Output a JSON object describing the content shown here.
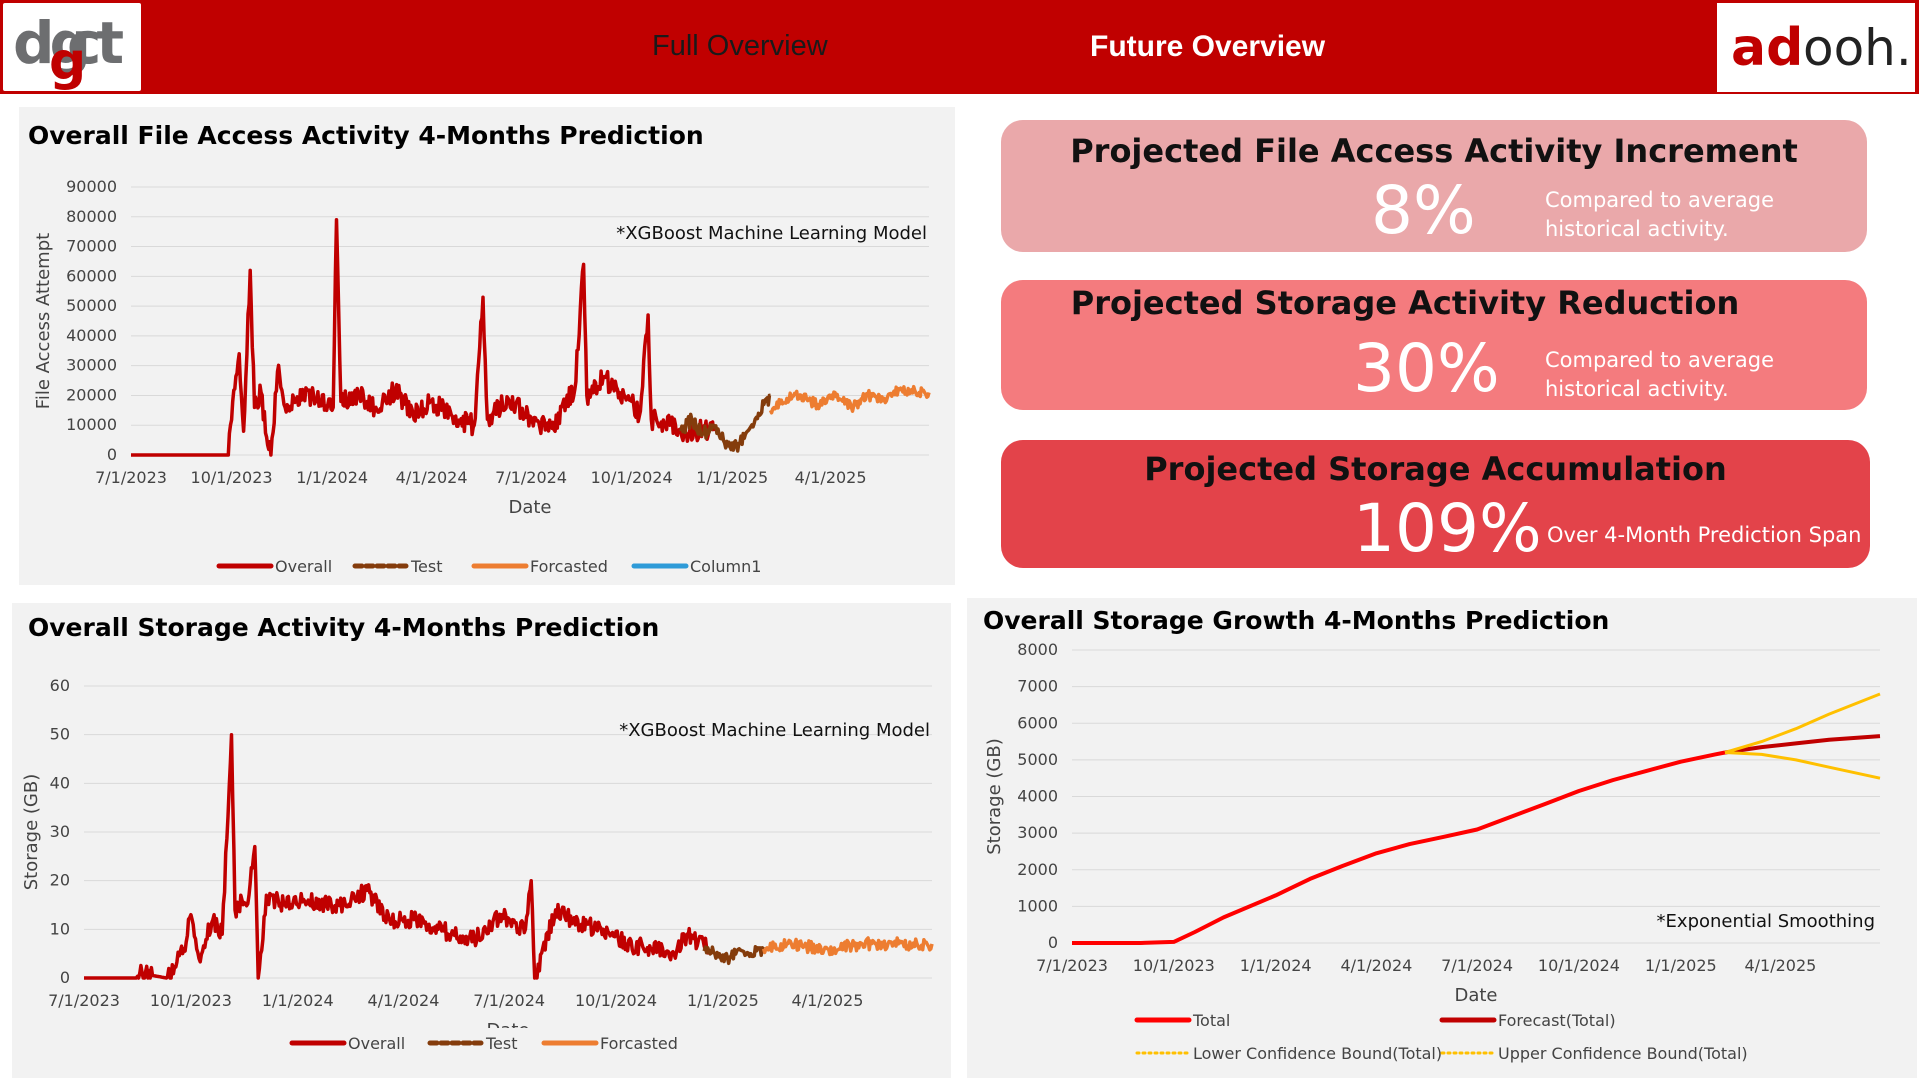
{
  "header": {
    "logo_left_text": "dgct",
    "logo_right_text": "adooh.",
    "nav_full": "Full Overview",
    "nav_future": "Future Overview"
  },
  "colors": {
    "header": "#c00000",
    "overall": "#c00000",
    "test": "#843c0c",
    "forecast": "#ed7d31",
    "column1": "#2e9bd8",
    "total": "#ff0000",
    "forecast_total": "#c00000",
    "confidence": "#ffc000",
    "card1": "#eaa8aa",
    "card2": "#f47b7e",
    "card3": "#e3434a"
  },
  "cards": [
    {
      "title": "Projected File Access Activity Increment",
      "value": "8%",
      "note_line1": "Compared to average",
      "note_line2": "historical activity."
    },
    {
      "title": "Projected Storage Activity Reduction",
      "value": "30%",
      "note_line1": "Compared to average",
      "note_line2": "historical activity."
    },
    {
      "title": "Projected Storage Accumulation",
      "value": "109%",
      "note_line1": "Over 4-Month Prediction Span",
      "note_line2": ""
    }
  ],
  "panels": {
    "file_access_title": "Overall File Access Activity 4-Months Prediction",
    "storage_activity_title": "Overall Storage Activity 4-Months Prediction",
    "storage_growth_title": "Overall Storage Growth 4-Months Prediction"
  },
  "chart_data": [
    {
      "type": "line",
      "title": "Overall File Access Activity 4-Months Prediction",
      "annotation": "*XGBoost Machine Learning Model",
      "xlabel": "Date",
      "ylabel": "File Access Attempt",
      "x_ticks": [
        "7/1/2023",
        "10/1/2023",
        "1/1/2024",
        "4/1/2024",
        "7/1/2024",
        "10/1/2024",
        "1/1/2025",
        "4/1/2025"
      ],
      "y_ticks": [
        0,
        10000,
        20000,
        30000,
        40000,
        50000,
        60000,
        70000,
        80000,
        90000
      ],
      "x_range": [
        "2023-07-01",
        "2025-06-30"
      ],
      "ylim": [
        0,
        90000
      ],
      "grid": true,
      "legend_position": "bottom",
      "series": [
        {
          "name": "Overall",
          "points": [
            [
              "2023-07-01",
              0
            ],
            [
              "2023-09-01",
              0
            ],
            [
              "2023-09-28",
              0
            ],
            [
              "2023-10-02",
              18000
            ],
            [
              "2023-10-08",
              34000
            ],
            [
              "2023-10-12",
              8000
            ],
            [
              "2023-10-18",
              62000
            ],
            [
              "2023-10-22",
              16000
            ],
            [
              "2023-10-28",
              21000
            ],
            [
              "2023-11-02",
              6000
            ],
            [
              "2023-11-06",
              0
            ],
            [
              "2023-11-12",
              28000
            ],
            [
              "2023-11-22",
              15000
            ],
            [
              "2023-12-05",
              22000
            ],
            [
              "2023-12-18",
              18000
            ],
            [
              "2024-01-02",
              16000
            ],
            [
              "2024-01-05",
              79000
            ],
            [
              "2024-01-09",
              18000
            ],
            [
              "2024-01-25",
              21000
            ],
            [
              "2024-02-10",
              16000
            ],
            [
              "2024-02-28",
              22000
            ],
            [
              "2024-03-15",
              14000
            ],
            [
              "2024-04-01",
              18000
            ],
            [
              "2024-04-20",
              13000
            ],
            [
              "2024-05-10",
              10000
            ],
            [
              "2024-05-18",
              53000
            ],
            [
              "2024-05-22",
              12000
            ],
            [
              "2024-06-10",
              19000
            ],
            [
              "2024-06-25",
              14000
            ],
            [
              "2024-07-08",
              11000
            ],
            [
              "2024-07-20",
              9000
            ],
            [
              "2024-08-02",
              18000
            ],
            [
              "2024-08-10",
              22000
            ],
            [
              "2024-08-18",
              64000
            ],
            [
              "2024-08-21",
              20000
            ],
            [
              "2024-09-05",
              26000
            ],
            [
              "2024-09-20",
              21000
            ],
            [
              "2024-10-01",
              18000
            ],
            [
              "2024-10-08",
              13000
            ],
            [
              "2024-10-16",
              47000
            ],
            [
              "2024-10-19",
              12000
            ],
            [
              "2024-11-05",
              10000
            ],
            [
              "2024-11-20",
              7000
            ],
            [
              "2024-12-05",
              9000
            ],
            [
              "2024-12-15",
              8000
            ]
          ]
        },
        {
          "name": "Test",
          "points": [
            [
              "2024-11-15",
              8000
            ],
            [
              "2024-11-25",
              12000
            ],
            [
              "2024-12-05",
              7000
            ],
            [
              "2024-12-15",
              10000
            ],
            [
              "2024-12-25",
              4000
            ],
            [
              "2025-01-05",
              3000
            ],
            [
              "2025-01-15",
              8000
            ],
            [
              "2025-01-25",
              14000
            ],
            [
              "2025-02-05",
              20000
            ]
          ]
        },
        {
          "name": "Forcasted",
          "points": [
            [
              "2025-02-05",
              15000
            ],
            [
              "2025-02-20",
              19000
            ],
            [
              "2025-03-05",
              20000
            ],
            [
              "2025-03-20",
              17000
            ],
            [
              "2025-04-05",
              21000
            ],
            [
              "2025-04-20",
              16000
            ],
            [
              "2025-05-05",
              20000
            ],
            [
              "2025-05-20",
              19000
            ],
            [
              "2025-06-05",
              22000
            ],
            [
              "2025-06-30",
              21000
            ]
          ]
        },
        {
          "name": "Column1",
          "points": []
        }
      ]
    },
    {
      "type": "line",
      "title": "Overall Storage Activity 4-Months Prediction",
      "annotation": "*XGBoost Machine Learning Model",
      "xlabel": "Date",
      "ylabel": "Storage (GB)",
      "x_ticks": [
        "7/1/2023",
        "10/1/2023",
        "1/1/2024",
        "4/1/2024",
        "7/1/2024",
        "10/1/2024",
        "1/1/2025",
        "4/1/2025"
      ],
      "y_ticks": [
        0,
        10,
        20,
        30,
        40,
        50,
        60
      ],
      "x_range": [
        "2023-07-01",
        "2025-06-30"
      ],
      "ylim": [
        0,
        60
      ],
      "grid": true,
      "legend_position": "bottom",
      "series": [
        {
          "name": "Overall",
          "points": [
            [
              "2023-07-01",
              0
            ],
            [
              "2023-08-15",
              0
            ],
            [
              "2023-08-18",
              1
            ],
            [
              "2023-09-10",
              0
            ],
            [
              "2023-09-25",
              6
            ],
            [
              "2023-10-01",
              13
            ],
            [
              "2023-10-08",
              4
            ],
            [
              "2023-10-20",
              12
            ],
            [
              "2023-10-28",
              9
            ],
            [
              "2023-11-05",
              50
            ],
            [
              "2023-11-08",
              14
            ],
            [
              "2023-11-20",
              17
            ],
            [
              "2023-11-25",
              27
            ],
            [
              "2023-11-28",
              0
            ],
            [
              "2023-12-05",
              17
            ],
            [
              "2023-12-20",
              15
            ],
            [
              "2024-01-10",
              16
            ],
            [
              "2024-02-05",
              15
            ],
            [
              "2024-03-01",
              18
            ],
            [
              "2024-03-20",
              12
            ],
            [
              "2024-04-10",
              12
            ],
            [
              "2024-05-01",
              10
            ],
            [
              "2024-06-01",
              8
            ],
            [
              "2024-06-25",
              13
            ],
            [
              "2024-07-15",
              10
            ],
            [
              "2024-07-20",
              20
            ],
            [
              "2024-07-23",
              0
            ],
            [
              "2024-08-10",
              14
            ],
            [
              "2024-09-01",
              11
            ],
            [
              "2024-09-20",
              10
            ],
            [
              "2024-10-10",
              7
            ],
            [
              "2024-11-01",
              6
            ],
            [
              "2024-11-20",
              5
            ],
            [
              "2024-12-01",
              9
            ],
            [
              "2024-12-20",
              6
            ]
          ]
        },
        {
          "name": "Test",
          "points": [
            [
              "2024-12-15",
              6
            ],
            [
              "2024-12-25",
              5
            ],
            [
              "2025-01-05",
              4
            ],
            [
              "2025-01-15",
              6
            ],
            [
              "2025-01-25",
              5
            ],
            [
              "2025-02-05",
              6
            ]
          ]
        },
        {
          "name": "Forcasted",
          "points": [
            [
              "2025-02-05",
              6
            ],
            [
              "2025-03-01",
              7
            ],
            [
              "2025-04-01",
              6
            ],
            [
              "2025-05-01",
              7
            ],
            [
              "2025-06-01",
              7
            ],
            [
              "2025-06-30",
              7
            ]
          ]
        }
      ]
    },
    {
      "type": "line",
      "title": "Overall Storage Growth 4-Months Prediction",
      "annotation": "*Exponential Smoothing",
      "xlabel": "Date",
      "ylabel": "Storage (GB)",
      "x_ticks": [
        "7/1/2023",
        "10/1/2023",
        "1/1/2024",
        "4/1/2024",
        "7/1/2024",
        "10/1/2024",
        "1/1/2025",
        "4/1/2025"
      ],
      "y_ticks": [
        0,
        1000,
        2000,
        3000,
        4000,
        5000,
        6000,
        7000,
        8000
      ],
      "x_range": [
        "2023-07-01",
        "2025-06-30"
      ],
      "ylim": [
        0,
        8000
      ],
      "grid": true,
      "legend_position": "bottom",
      "series": [
        {
          "name": "Total",
          "points": [
            [
              "2023-07-01",
              0
            ],
            [
              "2023-09-01",
              0
            ],
            [
              "2023-10-01",
              30
            ],
            [
              "2023-10-20",
              300
            ],
            [
              "2023-11-15",
              700
            ],
            [
              "2024-01-01",
              1300
            ],
            [
              "2024-02-01",
              1750
            ],
            [
              "2024-03-01",
              2100
            ],
            [
              "2024-04-01",
              2450
            ],
            [
              "2024-05-01",
              2700
            ],
            [
              "2024-06-01",
              2900
            ],
            [
              "2024-07-01",
              3100
            ],
            [
              "2024-08-01",
              3450
            ],
            [
              "2024-09-01",
              3800
            ],
            [
              "2024-10-01",
              4150
            ],
            [
              "2024-11-01",
              4450
            ],
            [
              "2024-12-01",
              4700
            ],
            [
              "2025-01-01",
              4950
            ],
            [
              "2025-02-01",
              5150
            ],
            [
              "2025-02-10",
              5200
            ]
          ]
        },
        {
          "name": "Forecast(Total)",
          "points": [
            [
              "2025-02-10",
              5200
            ],
            [
              "2025-03-15",
              5350
            ],
            [
              "2025-04-15",
              5450
            ],
            [
              "2025-05-15",
              5550
            ],
            [
              "2025-06-30",
              5650
            ]
          ]
        },
        {
          "name": "Lower Confidence Bound(Total)",
          "points": [
            [
              "2025-02-10",
              5200
            ],
            [
              "2025-03-15",
              5150
            ],
            [
              "2025-04-15",
              5000
            ],
            [
              "2025-05-15",
              4800
            ],
            [
              "2025-06-30",
              4500
            ]
          ]
        },
        {
          "name": "Upper Confidence Bound(Total)",
          "points": [
            [
              "2025-02-10",
              5200
            ],
            [
              "2025-03-15",
              5500
            ],
            [
              "2025-04-15",
              5850
            ],
            [
              "2025-05-15",
              6250
            ],
            [
              "2025-06-30",
              6800
            ]
          ]
        }
      ]
    }
  ]
}
